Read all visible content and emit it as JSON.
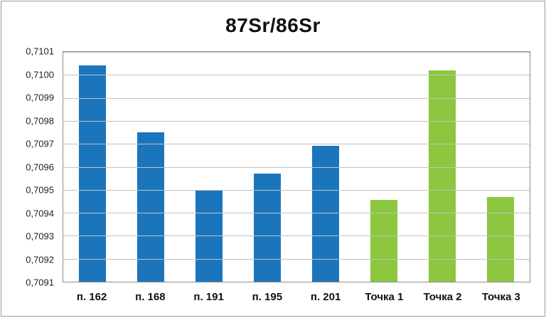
{
  "frame": {
    "border_color": "#9a9a9a",
    "background": "#ffffff"
  },
  "chart_data": {
    "type": "bar",
    "title": "87Sr/86Sr",
    "xlabel": "",
    "ylabel": "",
    "grid": true,
    "legend": "none",
    "categories": [
      "п. 162",
      "п. 168",
      "п. 191",
      "п. 195",
      "п. 201",
      "Точка 1",
      "Точка 2",
      "Точка 3"
    ],
    "values": [
      0.71004,
      0.70975,
      0.7095,
      0.70957,
      0.70969,
      0.709455,
      0.71002,
      0.70947
    ],
    "bar_colors": [
      "#1b75bc",
      "#1b75bc",
      "#1b75bc",
      "#1b75bc",
      "#1b75bc",
      "#8dc63f",
      "#8dc63f",
      "#8dc63f"
    ],
    "ylim": [
      0.7091,
      0.7101
    ],
    "y_tick_values": [
      0.7091,
      0.7092,
      0.7093,
      0.7094,
      0.7095,
      0.7096,
      0.7097,
      0.7098,
      0.7099,
      0.71,
      0.7101
    ],
    "y_tick_labels": [
      "0,7091",
      "0,7092",
      "0,7093",
      "0,7094",
      "0,7095",
      "0,7096",
      "0,7097",
      "0,7098",
      "0,7099",
      "0,7100",
      "0,7101"
    ],
    "colors": {
      "blue_series": "#1b75bc",
      "green_series": "#8dc63f",
      "gridline": "#c2c2c2",
      "plot_border": "#8c8c8c"
    }
  }
}
